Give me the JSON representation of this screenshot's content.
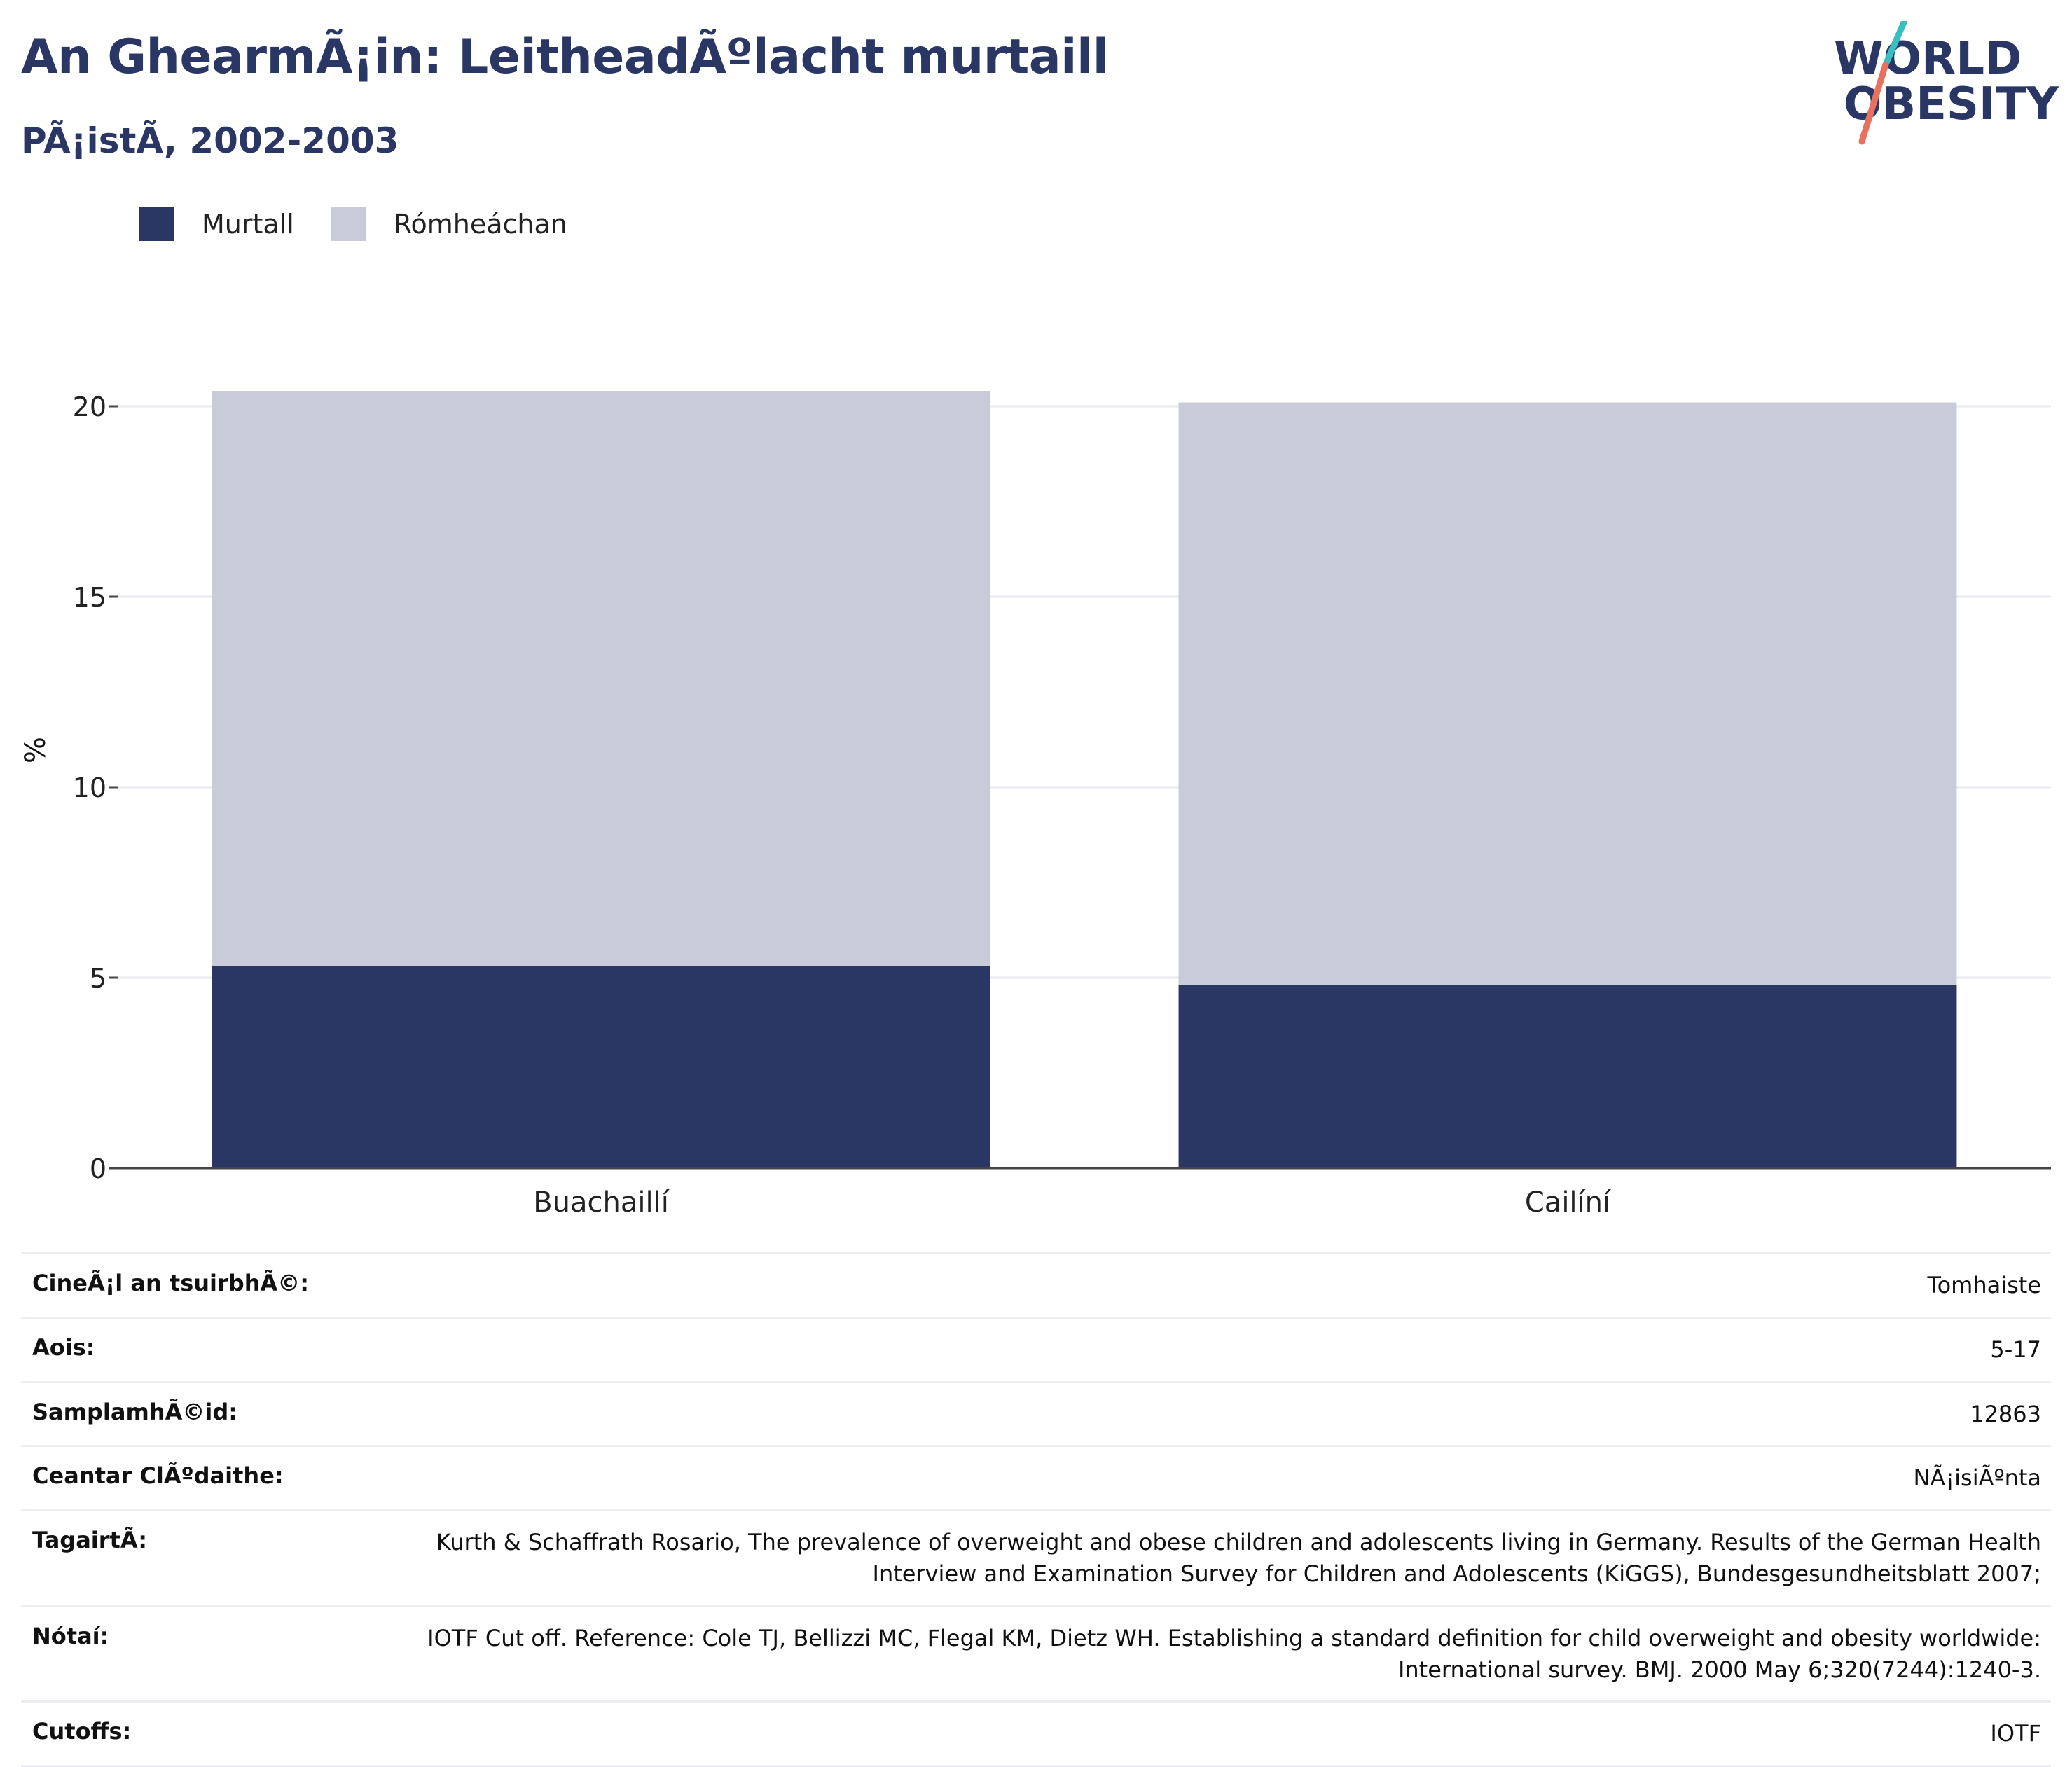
{
  "header": {
    "title": "An GhearmÃ¡in: LeitheadÃºlacht murtaill",
    "subtitle": "PÃ¡istÃ, 2002-2003",
    "logo_line1": "WORLD",
    "logo_line2": "OBESITY"
  },
  "legend": [
    {
      "label": "Murtall",
      "color": "#2a3764"
    },
    {
      "label": "Rómheáchan",
      "color": "#c9ccd8"
    }
  ],
  "chart_data": {
    "type": "bar",
    "stacked": true,
    "categories": [
      "Buachaillí",
      "Cailíní"
    ],
    "series": [
      {
        "name": "Murtall",
        "color": "#2a3764",
        "values": [
          5.3,
          4.8
        ]
      },
      {
        "name": "Rómheáchan",
        "color": "#c9ccd8",
        "values": [
          15.1,
          15.3
        ]
      }
    ],
    "ylabel": "%",
    "ylim": [
      0,
      21
    ],
    "yticks": [
      0,
      5,
      10,
      15,
      20
    ],
    "grid": true
  },
  "info": [
    {
      "key": "CineÃ¡l an tsuirbhÃ©:",
      "value": "Tomhaiste"
    },
    {
      "key": "Aois:",
      "value": "5-17"
    },
    {
      "key": "SamplamhÃ©id:",
      "value": "12863"
    },
    {
      "key": "Ceantar ClÃºdaithe:",
      "value": "NÃ¡isiÃºnta"
    },
    {
      "key": "TagairtÃ:",
      "value": "Kurth & Schaffrath Rosario, The prevalence of overweight and obese children and adolescents living in Germany. Results of the German Health Interview and Examination Survey for Children and Adolescents (KiGGS), Bundesgesundheitsblatt 2007;"
    },
    {
      "key": "Nótaí:",
      "value": "IOTF Cut off. Reference: Cole TJ, Bellizzi MC, Flegal KM, Dietz WH. Establishing a standard definition for child overweight and obesity worldwide: International survey. BMJ. 2000 May 6;320(7244):1240-3."
    },
    {
      "key": "Cutoffs:",
      "value": "IOTF"
    }
  ]
}
